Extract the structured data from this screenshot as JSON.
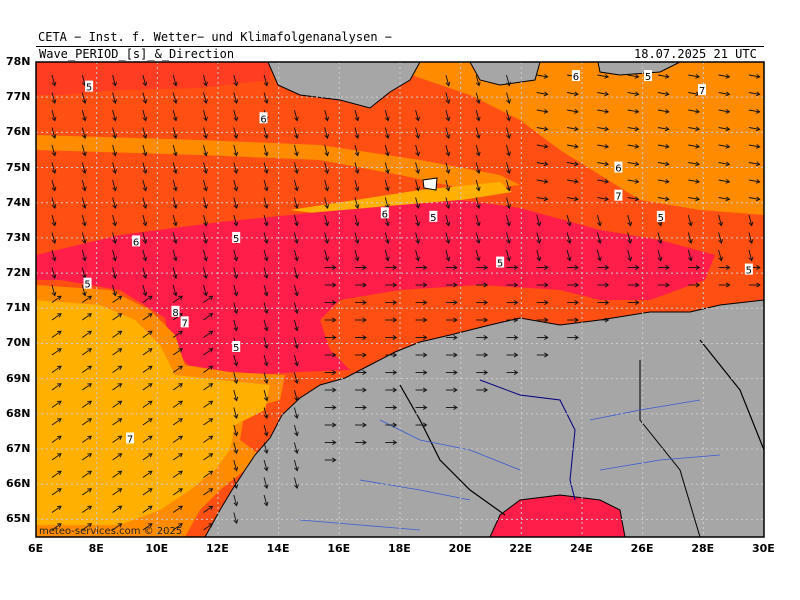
{
  "header": {
    "institute": "CETA − Inst. f. Wetter− und Klimafolgenanalysen −",
    "title_left": "Wave_PERIOD_[s]_&_Direction",
    "title_right": "18.07.2025 21 UTC"
  },
  "axes": {
    "lat_labels": [
      "78N",
      "77N",
      "76N",
      "75N",
      "74N",
      "73N",
      "72N",
      "71N",
      "70N",
      "69N",
      "68N",
      "67N",
      "66N",
      "65N"
    ],
    "lon_labels": [
      "6E",
      "8E",
      "10E",
      "12E",
      "14E",
      "16E",
      "18E",
      "20E",
      "22E",
      "24E",
      "26E",
      "28E",
      "30E"
    ]
  },
  "credit": "meteo-services.com  © 2025",
  "colors": {
    "period_5": "#ff1e4a",
    "period_6": "#ff4f12",
    "period_7": "#ff8c00",
    "period_8": "#ffb000",
    "period_4": "#e0007a",
    "land": "#a6a6a6",
    "rivers": "#3c5ad2",
    "border": "#000000"
  },
  "contour_labels": [
    {
      "text": "5",
      "lon": 7.75,
      "lat": 77.3
    },
    {
      "text": "6",
      "lon": 13.5,
      "lat": 76.4
    },
    {
      "text": "6",
      "lon": 23.8,
      "lat": 77.6
    },
    {
      "text": "5",
      "lon": 30.8,
      "lat": 77.6
    },
    {
      "text": "7",
      "lon": 32.6,
      "lat": 77.2
    },
    {
      "text": "6",
      "lon": 25.2,
      "lat": 75.0
    },
    {
      "text": "7",
      "lon": 25.2,
      "lat": 74.2
    },
    {
      "text": "6",
      "lon": 17.5,
      "lat": 73.7
    },
    {
      "text": "5",
      "lon": 19.1,
      "lat": 73.6
    },
    {
      "text": "5",
      "lon": 26.6,
      "lat": 73.6
    },
    {
      "text": "6",
      "lon": 9.3,
      "lat": 72.9
    },
    {
      "text": "5",
      "lon": 12.6,
      "lat": 73.0
    },
    {
      "text": "5",
      "lon": 21.3,
      "lat": 72.3
    },
    {
      "text": "5",
      "lon": 29.5,
      "lat": 72.1
    },
    {
      "text": "5",
      "lon": 7.7,
      "lat": 71.7
    },
    {
      "text": "8",
      "lon": 10.6,
      "lat": 70.9
    },
    {
      "text": "7",
      "lon": 10.9,
      "lat": 70.6
    },
    {
      "text": "5",
      "lon": 12.6,
      "lat": 69.9
    },
    {
      "text": "7",
      "lon": 9.1,
      "lat": 67.3
    }
  ]
}
